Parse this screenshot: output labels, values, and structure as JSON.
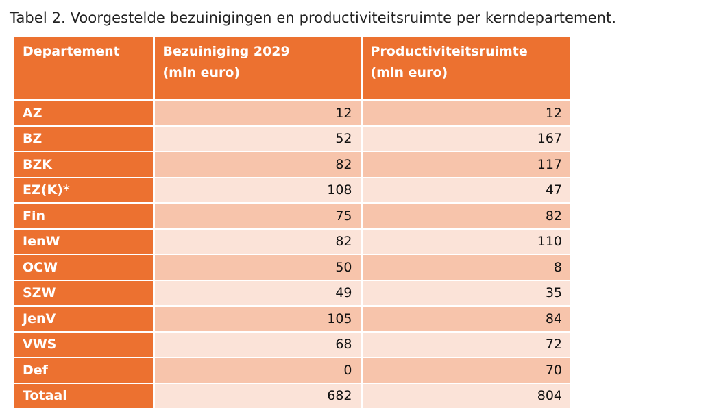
{
  "caption": "Tabel 2. Voorgestelde bezuinigingen en productiviteitsruimte per kerndepartement.",
  "table": {
    "headers": {
      "department": "Departement",
      "cut": [
        "Bezuiniging 2029",
        "(mln euro)"
      ],
      "productivity": [
        "Productiviteitsruimte",
        "(mln euro)"
      ]
    },
    "rows": [
      {
        "department": "AZ",
        "cut": "12",
        "productivity": "12"
      },
      {
        "department": "BZ",
        "cut": "52",
        "productivity": "167"
      },
      {
        "department": "BZK",
        "cut": "82",
        "productivity": "117"
      },
      {
        "department": "EZ(K)*",
        "cut": "108",
        "productivity": "47"
      },
      {
        "department": "Fin",
        "cut": "75",
        "productivity": "82"
      },
      {
        "department": "IenW",
        "cut": "82",
        "productivity": "110"
      },
      {
        "department": "OCW",
        "cut": "50",
        "productivity": "8"
      },
      {
        "department": "SZW",
        "cut": "49",
        "productivity": "35"
      },
      {
        "department": "JenV",
        "cut": "105",
        "productivity": "84"
      },
      {
        "department": "VWS",
        "cut": "68",
        "productivity": "72"
      },
      {
        "department": "Def",
        "cut": "0",
        "productivity": "70"
      },
      {
        "department": "Totaal",
        "cut": "682",
        "productivity": "804"
      }
    ]
  },
  "colors": {
    "header_orange": "#ec7130",
    "row_dark": "#f7c4ab",
    "row_light": "#fbe3d8"
  }
}
